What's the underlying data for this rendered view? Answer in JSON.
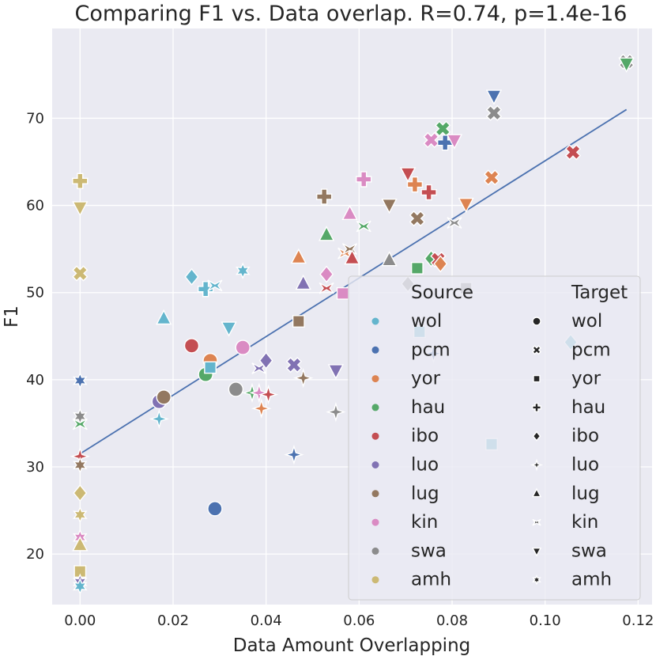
{
  "chart_data": {
    "type": "scatter",
    "title": "Comparing F1 vs. Data overlap. R=0.74, p=1.4e-16",
    "xlabel": "Data Amount Overlapping",
    "ylabel": "F1",
    "xlim": [
      -0.006,
      0.123
    ],
    "ylim": [
      14.2,
      80.3
    ],
    "xticks": [
      0.0,
      0.02,
      0.04,
      0.06,
      0.08,
      0.1,
      0.12
    ],
    "xtick_labels": [
      "0.00",
      "0.02",
      "0.04",
      "0.06",
      "0.08",
      "0.10",
      "0.12"
    ],
    "yticks": [
      20,
      30,
      40,
      50,
      60,
      70
    ],
    "ytick_labels": [
      "20",
      "30",
      "40",
      "50",
      "60",
      "70"
    ],
    "grid": true,
    "background": "#eaeaf2",
    "regression_line": {
      "x": [
        0.0,
        0.1175
      ],
      "y": [
        31.5,
        71.0
      ],
      "color": "#4c72b0"
    },
    "legend": {
      "placement": "lower-right",
      "source_title": "Source",
      "target_title": "Target",
      "sources": [
        {
          "name": "wol",
          "color": "#64b5cd"
        },
        {
          "name": "pcm",
          "color": "#4c72b0"
        },
        {
          "name": "yor",
          "color": "#dd8452"
        },
        {
          "name": "hau",
          "color": "#55a868"
        },
        {
          "name": "ibo",
          "color": "#c44e52"
        },
        {
          "name": "luo",
          "color": "#8172b3"
        },
        {
          "name": "lug",
          "color": "#937860"
        },
        {
          "name": "kin",
          "color": "#da8bc3"
        },
        {
          "name": "swa",
          "color": "#8c8c8c"
        },
        {
          "name": "amh",
          "color": "#ccb974"
        }
      ],
      "targets": [
        {
          "name": "wol",
          "marker": "circle"
        },
        {
          "name": "pcm",
          "marker": "x"
        },
        {
          "name": "yor",
          "marker": "square"
        },
        {
          "name": "hau",
          "marker": "plus"
        },
        {
          "name": "ibo",
          "marker": "diamond"
        },
        {
          "name": "luo",
          "marker": "star4"
        },
        {
          "name": "lug",
          "marker": "triangle-up"
        },
        {
          "name": "kin",
          "marker": "bowtie"
        },
        {
          "name": "swa",
          "marker": "triangle-down"
        },
        {
          "name": "amh",
          "marker": "star6"
        }
      ]
    },
    "points": [
      {
        "x": 0.0,
        "y": 62.8,
        "source": "amh",
        "target": "hau"
      },
      {
        "x": 0.0,
        "y": 59.8,
        "source": "amh",
        "target": "swa"
      },
      {
        "x": 0.0,
        "y": 52.2,
        "source": "amh",
        "target": "pcm"
      },
      {
        "x": 0.0,
        "y": 39.9,
        "source": "pcm",
        "target": "amh"
      },
      {
        "x": 0.0,
        "y": 35.8,
        "source": "swa",
        "target": "amh"
      },
      {
        "x": 0.0,
        "y": 34.9,
        "source": "hau",
        "target": "kin"
      },
      {
        "x": 0.0,
        "y": 31.2,
        "source": "ibo",
        "target": "luo"
      },
      {
        "x": 0.0,
        "y": 30.2,
        "source": "lug",
        "target": "amh"
      },
      {
        "x": 0.0,
        "y": 27.0,
        "source": "amh",
        "target": "ibo"
      },
      {
        "x": 0.0,
        "y": 24.5,
        "source": "amh",
        "target": "amh"
      },
      {
        "x": 0.0,
        "y": 21.9,
        "source": "kin",
        "target": "amh"
      },
      {
        "x": 0.0,
        "y": 21.0,
        "source": "amh",
        "target": "lug"
      },
      {
        "x": 0.0,
        "y": 18.0,
        "source": "amh",
        "target": "yor"
      },
      {
        "x": 0.0,
        "y": 16.8,
        "source": "luo",
        "target": "amh"
      },
      {
        "x": 0.0,
        "y": 16.3,
        "source": "wol",
        "target": "amh"
      },
      {
        "x": 0.017,
        "y": 37.5,
        "source": "luo",
        "target": "wol"
      },
      {
        "x": 0.017,
        "y": 35.5,
        "source": "wol",
        "target": "luo"
      },
      {
        "x": 0.018,
        "y": 38.0,
        "source": "lug",
        "target": "wol"
      },
      {
        "x": 0.018,
        "y": 47.0,
        "source": "wol",
        "target": "lug"
      },
      {
        "x": 0.024,
        "y": 51.8,
        "source": "wol",
        "target": "ibo"
      },
      {
        "x": 0.024,
        "y": 43.9,
        "source": "ibo",
        "target": "wol"
      },
      {
        "x": 0.027,
        "y": 40.6,
        "source": "hau",
        "target": "wol"
      },
      {
        "x": 0.027,
        "y": 50.4,
        "source": "wol",
        "target": "hau"
      },
      {
        "x": 0.028,
        "y": 42.2,
        "source": "yor",
        "target": "wol"
      },
      {
        "x": 0.028,
        "y": 41.4,
        "source": "wol",
        "target": "yor"
      },
      {
        "x": 0.029,
        "y": 25.2,
        "source": "pcm",
        "target": "wol"
      },
      {
        "x": 0.029,
        "y": 50.8,
        "source": "wol",
        "target": "kin"
      },
      {
        "x": 0.032,
        "y": 46.0,
        "source": "wol",
        "target": "swa"
      },
      {
        "x": 0.0335,
        "y": 38.9,
        "source": "swa",
        "target": "wol"
      },
      {
        "x": 0.035,
        "y": 43.7,
        "source": "kin",
        "target": "wol"
      },
      {
        "x": 0.035,
        "y": 52.5,
        "source": "wol",
        "target": "amh"
      },
      {
        "x": 0.037,
        "y": 38.5,
        "source": "hau",
        "target": "luo"
      },
      {
        "x": 0.0385,
        "y": 38.5,
        "source": "kin",
        "target": "luo"
      },
      {
        "x": 0.0385,
        "y": 41.3,
        "source": "luo",
        "target": "kin"
      },
      {
        "x": 0.039,
        "y": 36.7,
        "source": "yor",
        "target": "luo"
      },
      {
        "x": 0.04,
        "y": 42.2,
        "source": "luo",
        "target": "ibo"
      },
      {
        "x": 0.0405,
        "y": 38.3,
        "source": "ibo",
        "target": "luo"
      },
      {
        "x": 0.046,
        "y": 41.7,
        "source": "luo",
        "target": "pcm"
      },
      {
        "x": 0.046,
        "y": 31.4,
        "source": "pcm",
        "target": "luo"
      },
      {
        "x": 0.047,
        "y": 54.0,
        "source": "yor",
        "target": "lug"
      },
      {
        "x": 0.047,
        "y": 46.7,
        "source": "lug",
        "target": "yor"
      },
      {
        "x": 0.048,
        "y": 51.0,
        "source": "luo",
        "target": "lug"
      },
      {
        "x": 0.048,
        "y": 40.2,
        "source": "lug",
        "target": "luo"
      },
      {
        "x": 0.0525,
        "y": 61.0,
        "source": "lug",
        "target": "hau"
      },
      {
        "x": 0.053,
        "y": 56.6,
        "source": "hau",
        "target": "lug"
      },
      {
        "x": 0.053,
        "y": 50.5,
        "source": "ibo",
        "target": "kin"
      },
      {
        "x": 0.053,
        "y": 52.1,
        "source": "kin",
        "target": "ibo"
      },
      {
        "x": 0.055,
        "y": 41.1,
        "source": "luo",
        "target": "swa"
      },
      {
        "x": 0.055,
        "y": 36.3,
        "source": "swa",
        "target": "luo"
      },
      {
        "x": 0.0565,
        "y": 49.9,
        "source": "kin",
        "target": "yor"
      },
      {
        "x": 0.057,
        "y": 54.5,
        "source": "yor",
        "target": "kin"
      },
      {
        "x": 0.058,
        "y": 55.0,
        "source": "lug",
        "target": "kin"
      },
      {
        "x": 0.058,
        "y": 59.0,
        "source": "kin",
        "target": "lug"
      },
      {
        "x": 0.0585,
        "y": 53.9,
        "source": "ibo",
        "target": "lug"
      },
      {
        "x": 0.061,
        "y": 63.0,
        "source": "kin",
        "target": "hau"
      },
      {
        "x": 0.061,
        "y": 57.6,
        "source": "hau",
        "target": "kin"
      },
      {
        "x": 0.0665,
        "y": 60.1,
        "source": "lug",
        "target": "swa"
      },
      {
        "x": 0.0665,
        "y": 53.7,
        "source": "swa",
        "target": "lug"
      },
      {
        "x": 0.0705,
        "y": 51.0,
        "source": "swa",
        "target": "ibo"
      },
      {
        "x": 0.0705,
        "y": 63.7,
        "source": "ibo",
        "target": "swa"
      },
      {
        "x": 0.072,
        "y": 62.4,
        "source": "yor",
        "target": "hau"
      },
      {
        "x": 0.0725,
        "y": 52.8,
        "source": "hau",
        "target": "yor"
      },
      {
        "x": 0.0725,
        "y": 58.5,
        "source": "lug",
        "target": "pcm"
      },
      {
        "x": 0.075,
        "y": 61.5,
        "source": "ibo",
        "target": "hau"
      },
      {
        "x": 0.0755,
        "y": 53.9,
        "source": "hau",
        "target": "ibo"
      },
      {
        "x": 0.0755,
        "y": 67.5,
        "source": "kin",
        "target": "pcm"
      },
      {
        "x": 0.077,
        "y": 53.8,
        "source": "ibo",
        "target": "pcm"
      },
      {
        "x": 0.0775,
        "y": 53.3,
        "source": "yor",
        "target": "ibo"
      },
      {
        "x": 0.078,
        "y": 68.8,
        "source": "hau",
        "target": "pcm"
      },
      {
        "x": 0.0785,
        "y": 67.2,
        "source": "pcm",
        "target": "hau"
      },
      {
        "x": 0.0805,
        "y": 67.5,
        "source": "kin",
        "target": "swa"
      },
      {
        "x": 0.0805,
        "y": 58.0,
        "source": "swa",
        "target": "kin"
      },
      {
        "x": 0.083,
        "y": 60.2,
        "source": "yor",
        "target": "swa"
      },
      {
        "x": 0.083,
        "y": 50.5,
        "source": "swa",
        "target": "yor"
      },
      {
        "x": 0.0885,
        "y": 63.2,
        "source": "yor",
        "target": "pcm"
      },
      {
        "x": 0.0885,
        "y": 32.6,
        "source": "wol",
        "target": "yor"
      },
      {
        "x": 0.089,
        "y": 72.6,
        "source": "pcm",
        "target": "swa"
      },
      {
        "x": 0.089,
        "y": 70.6,
        "source": "swa",
        "target": "pcm"
      },
      {
        "x": 0.106,
        "y": 66.1,
        "source": "ibo",
        "target": "pcm"
      },
      {
        "x": 0.1055,
        "y": 44.3,
        "source": "wol",
        "target": "ibo"
      },
      {
        "x": 0.1175,
        "y": 76.5,
        "source": "swa",
        "target": "pcm"
      },
      {
        "x": 0.1175,
        "y": 76.3,
        "source": "hau",
        "target": "swa"
      },
      {
        "x": 0.076,
        "y": 43.0,
        "source": "pcm",
        "target": "luo"
      },
      {
        "x": 0.073,
        "y": 45.5,
        "source": "wol",
        "target": "yor"
      }
    ]
  }
}
